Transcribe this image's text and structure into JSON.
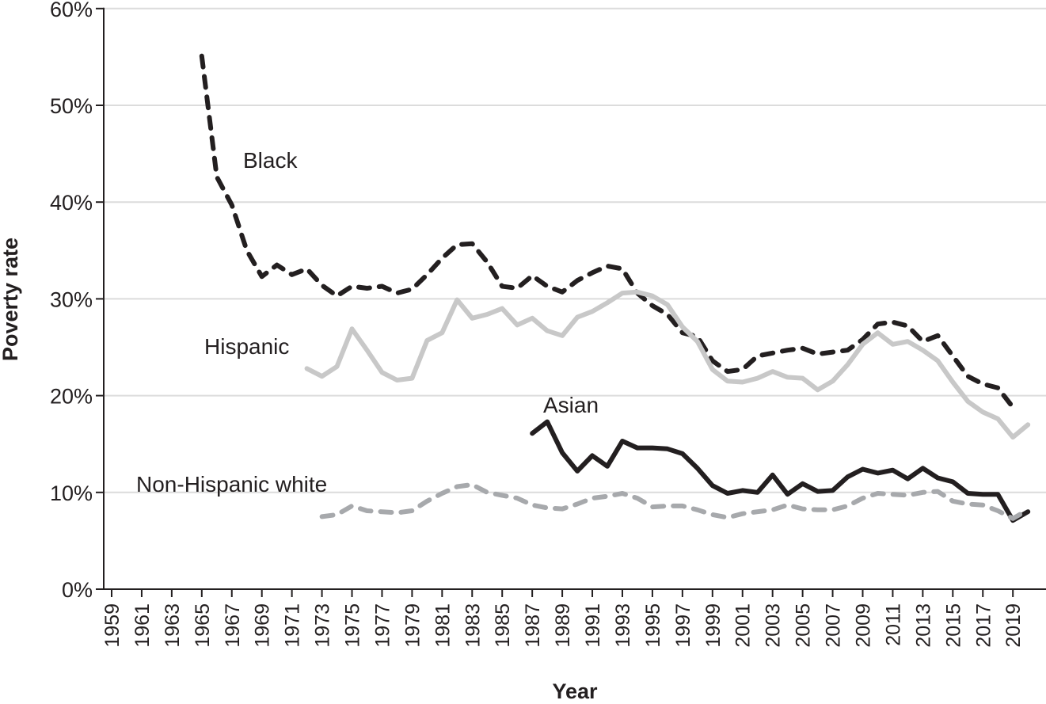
{
  "chart_data": {
    "type": "line",
    "title": "",
    "xlabel": "Year",
    "ylabel": "Poverty rate",
    "xlim": [
      1959,
      2020
    ],
    "ylim": [
      0,
      60
    ],
    "yticks": [
      "0%",
      "10%",
      "20%",
      "30%",
      "40%",
      "50%",
      "60%"
    ],
    "ytick_values": [
      0,
      10,
      20,
      30,
      40,
      50,
      60
    ],
    "xticks": [
      "1959",
      "1961",
      "1963",
      "1965",
      "1967",
      "1969",
      "1971",
      "1973",
      "1975",
      "1977",
      "1979",
      "1981",
      "1983",
      "1985",
      "1987",
      "1989",
      "1991",
      "1993",
      "1995",
      "1997",
      "1999",
      "2001",
      "2003",
      "2005",
      "2007",
      "2009",
      "2011",
      "2013",
      "2015",
      "2017",
      "2019"
    ],
    "grid": "horizontal",
    "legend": "inline labels",
    "series": [
      {
        "name": "Black",
        "color": "#231f20",
        "style": "dashed",
        "x": [
          1965,
          1966,
          1967,
          1968,
          1969,
          1970,
          1971,
          1972,
          1973,
          1974,
          1975,
          1976,
          1977,
          1978,
          1979,
          1980,
          1981,
          1982,
          1983,
          1984,
          1985,
          1986,
          1987,
          1988,
          1989,
          1990,
          1991,
          1992,
          1993,
          1994,
          1995,
          1996,
          1997,
          1998,
          1999,
          2000,
          2001,
          2002,
          2003,
          2004,
          2005,
          2006,
          2007,
          2008,
          2009,
          2010,
          2011,
          2012,
          2013,
          2014,
          2015,
          2016,
          2017,
          2018,
          2019
        ],
        "values": [
          55.1,
          42.6,
          39.7,
          35.0,
          32.3,
          33.5,
          32.5,
          33.1,
          31.4,
          30.3,
          31.3,
          31.1,
          31.3,
          30.6,
          31.0,
          32.5,
          34.2,
          35.6,
          35.7,
          33.8,
          31.3,
          31.1,
          32.4,
          31.3,
          30.7,
          31.9,
          32.7,
          33.4,
          33.1,
          30.6,
          29.3,
          28.4,
          26.5,
          26.1,
          23.6,
          22.5,
          22.7,
          24.1,
          24.4,
          24.7,
          24.9,
          24.3,
          24.5,
          24.7,
          25.8,
          27.4,
          27.6,
          27.2,
          25.6,
          26.2,
          24.1,
          22.0,
          21.2,
          20.8,
          18.8
        ]
      },
      {
        "name": "Hispanic",
        "color": "#c8c8c8",
        "style": "solid",
        "x": [
          1972,
          1973,
          1974,
          1975,
          1976,
          1977,
          1978,
          1979,
          1980,
          1981,
          1982,
          1983,
          1984,
          1985,
          1986,
          1987,
          1988,
          1989,
          1990,
          1991,
          1992,
          1993,
          1994,
          1995,
          1996,
          1997,
          1998,
          1999,
          2000,
          2001,
          2002,
          2003,
          2004,
          2005,
          2006,
          2007,
          2008,
          2009,
          2010,
          2011,
          2012,
          2013,
          2014,
          2015,
          2016,
          2017,
          2018,
          2019,
          2020
        ],
        "values": [
          22.8,
          22.0,
          23.0,
          26.9,
          24.7,
          22.4,
          21.6,
          21.8,
          25.7,
          26.5,
          29.9,
          28.0,
          28.4,
          29.0,
          27.3,
          28.0,
          26.7,
          26.2,
          28.1,
          28.7,
          29.6,
          30.6,
          30.7,
          30.3,
          29.4,
          27.1,
          25.6,
          22.7,
          21.5,
          21.4,
          21.8,
          22.5,
          21.9,
          21.8,
          20.6,
          21.5,
          23.2,
          25.3,
          26.5,
          25.3,
          25.6,
          24.7,
          23.6,
          21.4,
          19.4,
          18.3,
          17.6,
          15.7,
          17.0
        ]
      },
      {
        "name": "Asian",
        "color": "#231f20",
        "style": "solid",
        "x": [
          1987,
          1988,
          1989,
          1990,
          1991,
          1992,
          1993,
          1994,
          1995,
          1996,
          1997,
          1998,
          1999,
          2000,
          2001,
          2002,
          2003,
          2004,
          2005,
          2006,
          2007,
          2008,
          2009,
          2010,
          2011,
          2012,
          2013,
          2014,
          2015,
          2016,
          2017,
          2018,
          2019,
          2020
        ],
        "values": [
          16.1,
          17.3,
          14.1,
          12.2,
          13.8,
          12.7,
          15.3,
          14.6,
          14.6,
          14.5,
          14.0,
          12.5,
          10.7,
          9.9,
          10.2,
          10.0,
          11.8,
          9.8,
          10.9,
          10.1,
          10.2,
          11.6,
          12.4,
          12.0,
          12.3,
          11.4,
          12.5,
          11.5,
          11.1,
          9.9,
          9.8,
          9.8,
          7.1,
          8.0
        ]
      },
      {
        "name": "Non-Hispanic white",
        "color": "#a7a9ac",
        "style": "dashed",
        "x": [
          1973,
          1974,
          1975,
          1976,
          1977,
          1978,
          1979,
          1980,
          1981,
          1982,
          1983,
          1984,
          1985,
          1986,
          1987,
          1988,
          1989,
          1990,
          1991,
          1992,
          1993,
          1994,
          1995,
          1996,
          1997,
          1998,
          1999,
          2000,
          2001,
          2002,
          2003,
          2004,
          2005,
          2006,
          2007,
          2008,
          2009,
          2010,
          2011,
          2012,
          2013,
          2014,
          2015,
          2016,
          2017,
          2018,
          2019,
          2020
        ],
        "values": [
          7.5,
          7.7,
          8.6,
          8.1,
          8.0,
          7.9,
          8.1,
          9.1,
          9.9,
          10.6,
          10.8,
          10.0,
          9.7,
          9.4,
          8.7,
          8.4,
          8.3,
          8.8,
          9.4,
          9.6,
          9.9,
          9.4,
          8.5,
          8.6,
          8.6,
          8.2,
          7.7,
          7.4,
          7.8,
          8.0,
          8.2,
          8.7,
          8.3,
          8.2,
          8.2,
          8.6,
          9.4,
          9.9,
          9.8,
          9.7,
          10.0,
          10.1,
          9.1,
          8.8,
          8.7,
          8.1,
          7.3,
          8.2
        ]
      }
    ]
  }
}
